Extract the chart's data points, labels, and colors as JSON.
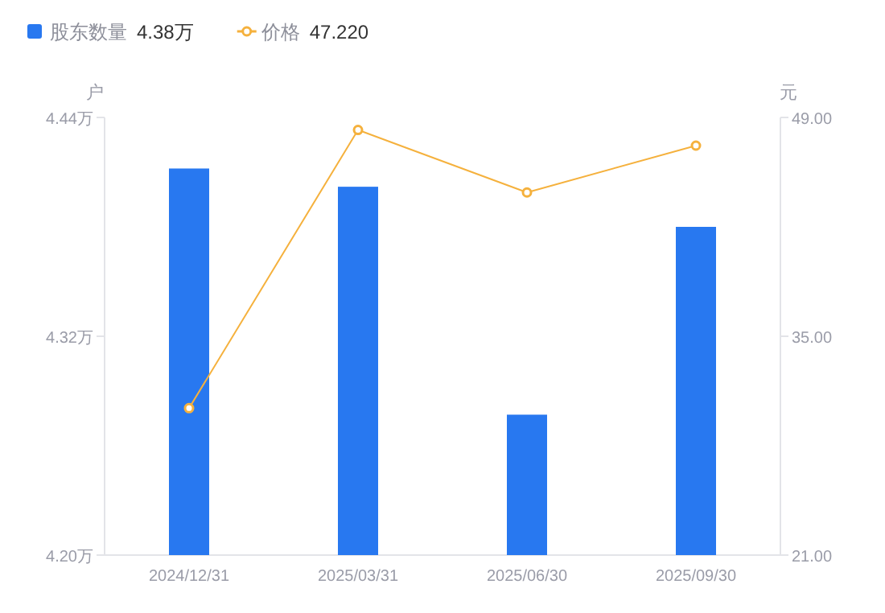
{
  "chart_data": {
    "type": "bar",
    "categories": [
      "2024/12/31",
      "2025/03/31",
      "2025/06/30",
      "2025/09/30"
    ],
    "series": [
      {
        "name": "股东数量",
        "color": "#2878f0",
        "values": [
          4.412,
          4.402,
          4.277,
          4.38
        ]
      },
      {
        "name": "价格",
        "type": "line",
        "axis": "y2",
        "color": "#f5b13d",
        "marker": "circle",
        "values": [
          30.4,
          48.2,
          44.2,
          47.2
        ]
      }
    ],
    "annotations": [
      "4.38万",
      "47.220"
    ],
    "ylabel": "户",
    "y2label": "元",
    "ylim": [
      4.2,
      4.44
    ],
    "yticks": [
      {
        "value": 4.2,
        "label": "4.20万"
      },
      {
        "value": 4.32,
        "label": "4.32万"
      },
      {
        "value": 4.44,
        "label": "4.44万"
      }
    ],
    "y2lim": [
      21,
      49
    ],
    "y2ticks": [
      {
        "value": 21,
        "label": "21.00"
      },
      {
        "value": 35,
        "label": "35.00"
      },
      {
        "value": 49,
        "label": "49.00"
      }
    ],
    "legend": "top left",
    "grid": false
  }
}
